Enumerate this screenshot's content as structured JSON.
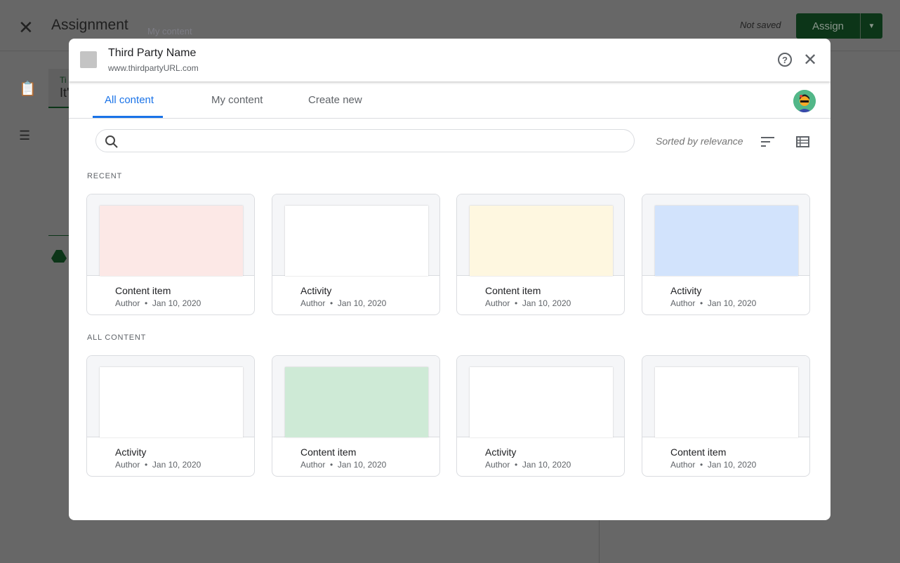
{
  "background": {
    "title": "Assignment",
    "ghost_text": "My content",
    "status": "Not saved",
    "assign_label": "Assign",
    "field_label": "Ti",
    "field_value": "It'"
  },
  "modal": {
    "third_party_name": "Third Party Name",
    "third_party_url": "www.thirdpartyURL.com",
    "tabs": [
      {
        "label": "All content",
        "active": true
      },
      {
        "label": "My content"
      },
      {
        "label": "Create new"
      }
    ],
    "search": {
      "placeholder": "",
      "value": ""
    },
    "sort_label": "Sorted by relevance",
    "sections": [
      {
        "title": "RECENT",
        "items": [
          {
            "name": "Content item",
            "author": "Author",
            "date": "Jan 10, 2020",
            "color": "#fce8e6"
          },
          {
            "name": "Activity",
            "author": "Author",
            "date": "Jan 10, 2020",
            "color": "#ffffff"
          },
          {
            "name": "Content item",
            "author": "Author",
            "date": "Jan 10, 2020",
            "color": "#fef7e0"
          },
          {
            "name": "Activity",
            "author": "Author",
            "date": "Jan 10, 2020",
            "color": "#d2e3fc"
          }
        ]
      },
      {
        "title": "ALL CONTENT",
        "items": [
          {
            "name": "Activity",
            "author": "Author",
            "date": "Jan 10, 2020",
            "color": "#ffffff"
          },
          {
            "name": "Content item",
            "author": "Author",
            "date": "Jan 10, 2020",
            "color": "#ceead6"
          },
          {
            "name": "Activity",
            "author": "Author",
            "date": "Jan 10, 2020",
            "color": "#ffffff"
          },
          {
            "name": "Content item",
            "author": "Author",
            "date": "Jan 10, 2020",
            "color": "#ffffff"
          }
        ]
      }
    ]
  },
  "colors": {
    "accent": "#1a73e8",
    "assign": "#1e8e3e"
  }
}
